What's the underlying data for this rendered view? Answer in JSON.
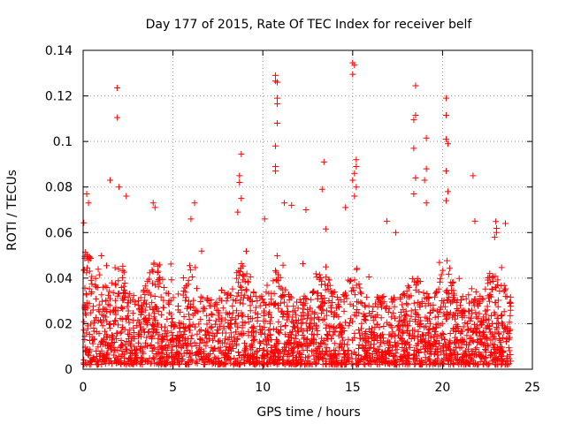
{
  "chart_data": {
    "type": "scatter",
    "title": "Day 177 of 2015, Rate Of TEC Index for receiver belf",
    "xlabel": "GPS time / hours",
    "ylabel": "ROTI / TECUs",
    "xlim": [
      0,
      25
    ],
    "ylim": [
      0,
      0.14
    ],
    "x_ticks": [
      "0",
      "5",
      "10",
      "15",
      "20",
      "25"
    ],
    "y_ticks": [
      "0",
      "0.02",
      "0.04",
      "0.06",
      "0.08",
      "0.1",
      "0.12",
      "0.14"
    ],
    "grid": true,
    "marker": "+",
    "colors": {
      "points": "#ff0000",
      "grid": "#a0a0a0",
      "axes": "#000000"
    },
    "series": [
      {
        "points": [
          [
            1.9,
            0.1235
          ],
          [
            1.9,
            0.1105
          ],
          [
            8.8,
            0.0945
          ],
          [
            8.7,
            0.085
          ],
          [
            8.7,
            0.082
          ],
          [
            8.8,
            0.075
          ],
          [
            8.6,
            0.069
          ],
          [
            10.7,
            0.129
          ],
          [
            10.7,
            0.1265
          ],
          [
            10.8,
            0.126
          ],
          [
            10.8,
            0.119
          ],
          [
            10.8,
            0.1165
          ],
          [
            10.8,
            0.108
          ],
          [
            10.7,
            0.098
          ],
          [
            10.7,
            0.089
          ],
          [
            10.7,
            0.087
          ],
          [
            11.2,
            0.073
          ],
          [
            13.4,
            0.091
          ],
          [
            13.3,
            0.079
          ],
          [
            15.0,
            0.1345
          ],
          [
            15.1,
            0.1335
          ],
          [
            15.0,
            0.1295
          ],
          [
            15.2,
            0.092
          ],
          [
            15.2,
            0.089
          ],
          [
            15.1,
            0.086
          ],
          [
            15.0,
            0.083
          ],
          [
            15.2,
            0.08
          ],
          [
            15.1,
            0.076
          ],
          [
            18.5,
            0.1245
          ],
          [
            18.5,
            0.1115
          ],
          [
            18.4,
            0.1095
          ],
          [
            18.4,
            0.097
          ],
          [
            18.5,
            0.084
          ],
          [
            18.4,
            0.077
          ],
          [
            19.1,
            0.1015
          ],
          [
            19.1,
            0.088
          ],
          [
            19.0,
            0.083
          ],
          [
            19.1,
            0.073
          ],
          [
            20.2,
            0.119
          ],
          [
            20.2,
            0.1115
          ],
          [
            20.2,
            0.101
          ],
          [
            20.3,
            0.099
          ],
          [
            20.2,
            0.087
          ],
          [
            20.3,
            0.078
          ],
          [
            20.2,
            0.074
          ],
          [
            21.7,
            0.085
          ],
          [
            21.8,
            0.065
          ],
          [
            1.5,
            0.083
          ],
          [
            2.0,
            0.08
          ],
          [
            2.4,
            0.076
          ],
          [
            0.2,
            0.077
          ],
          [
            0.3,
            0.073
          ],
          [
            3.9,
            0.073
          ],
          [
            4.0,
            0.071
          ],
          [
            6.2,
            0.073
          ],
          [
            6.0,
            0.066
          ],
          [
            10.1,
            0.066
          ],
          [
            11.6,
            0.072
          ],
          [
            12.4,
            0.07
          ],
          [
            14.6,
            0.071
          ],
          [
            16.9,
            0.065
          ],
          [
            17.4,
            0.06
          ],
          [
            23.5,
            0.064
          ],
          [
            23.0,
            0.06
          ],
          [
            22.9,
            0.058
          ]
        ]
      }
    ]
  }
}
